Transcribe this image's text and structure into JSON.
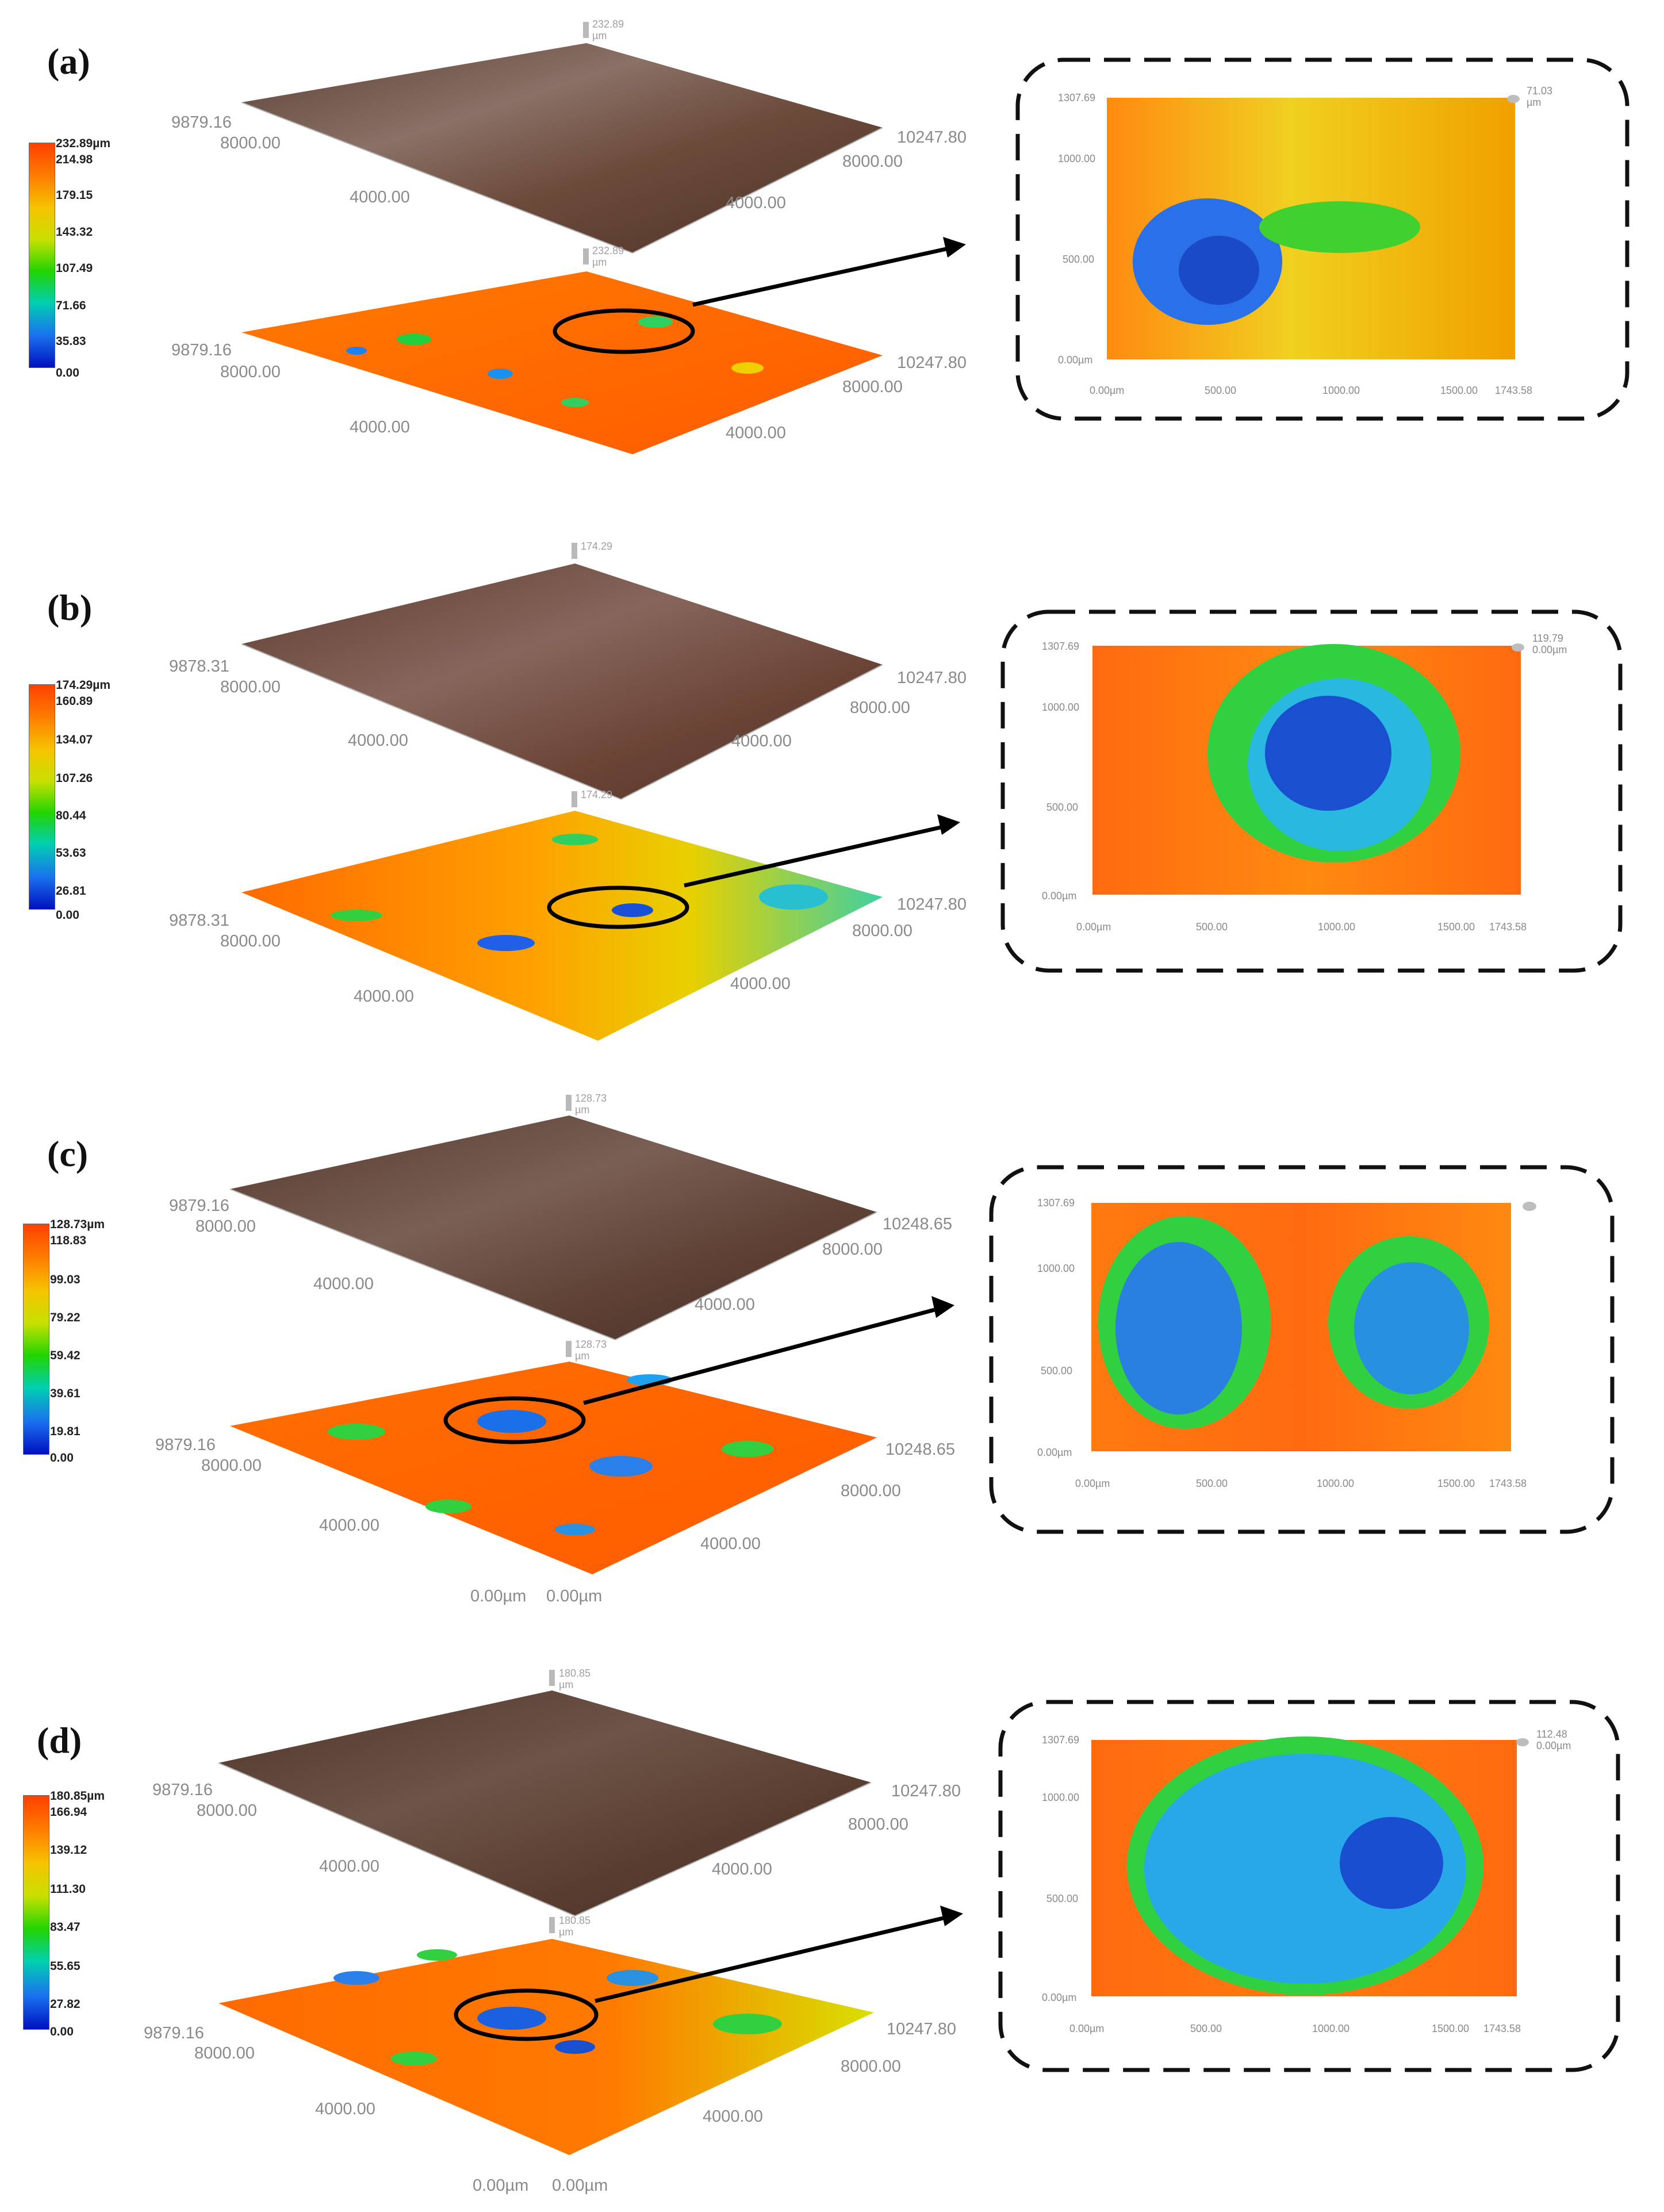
{
  "panels": [
    {
      "label": "(a)",
      "colorbar": [
        "232.89µm",
        "214.98",
        "179.15",
        "143.32",
        "107.49",
        "71.66",
        "35.83",
        "0.00"
      ],
      "top_surface": {
        "peak": "232.89",
        "unit": "µm",
        "y_max": "9879.16",
        "y_mid": "8000.00",
        "y_low": "4000.00",
        "x_max": "10247.80",
        "x_mid": "8000.00",
        "x_low": "4000.00"
      },
      "bottom_surface": {
        "peak": "232.89",
        "unit": "µm",
        "y_max": "9879.16",
        "y_mid": "8000.00",
        "y_low": "4000.00",
        "x_max": "10247.80",
        "x_mid": "8000.00",
        "x_low": "4000.00"
      },
      "origin": [],
      "inset": {
        "y_ticks": [
          "1307.69",
          "1000.00",
          "500.00",
          "0.00µm"
        ],
        "x_ticks": [
          "0.00µm",
          "500.00",
          "1000.00",
          "1500.00",
          "1743.58"
        ],
        "corner": "71.03",
        "corner_unit": "µm"
      }
    },
    {
      "label": "(b)",
      "colorbar": [
        "174.29µm",
        "160.89",
        "134.07",
        "107.26",
        "80.44",
        "53.63",
        "26.81",
        "0.00"
      ],
      "top_surface": {
        "peak": "174.29",
        "unit": "",
        "y_max": "9878.31",
        "y_mid": "8000.00",
        "y_low": "4000.00",
        "x_max": "10247.80",
        "x_mid": "8000.00",
        "x_low": "4000.00"
      },
      "bottom_surface": {
        "peak": "174.29",
        "unit": "",
        "y_max": "9878.31",
        "y_mid": "8000.00",
        "y_low": "4000.00",
        "x_max": "10247.80",
        "x_mid": "8000.00",
        "x_low": "4000.00"
      },
      "origin": [],
      "inset": {
        "y_ticks": [
          "1307.69",
          "1000.00",
          "500.00",
          "0.00µm"
        ],
        "x_ticks": [
          "0.00µm",
          "500.00",
          "1000.00",
          "1500.00",
          "1743.58"
        ],
        "corner": "119.79",
        "corner_unit": "0.00µm"
      }
    },
    {
      "label": "(c)",
      "colorbar": [
        "128.73µm",
        "118.83",
        "99.03",
        "79.22",
        "59.42",
        "39.61",
        "19.81",
        "0.00"
      ],
      "top_surface": {
        "peak": "128.73",
        "unit": "µm",
        "y_max": "9879.16",
        "y_mid": "8000.00",
        "y_low": "4000.00",
        "x_max": "10248.65",
        "x_mid": "8000.00",
        "x_low": "4000.00"
      },
      "bottom_surface": {
        "peak": "128.73",
        "unit": "µm",
        "y_max": "9879.16",
        "y_mid": "8000.00",
        "y_low": "4000.00",
        "x_max": "10248.65",
        "x_mid": "8000.00",
        "x_low": "4000.00"
      },
      "origin": [
        "0.00µm",
        "0.00µm"
      ],
      "inset": {
        "y_ticks": [
          "1307.69",
          "1000.00",
          "500.00",
          "0.00µm"
        ],
        "x_ticks": [
          "0.00µm",
          "500.00",
          "1000.00",
          "1500.00",
          "1743.58"
        ],
        "corner": "",
        "corner_unit": ""
      }
    },
    {
      "label": "(d)",
      "colorbar": [
        "180.85µm",
        "166.94",
        "139.12",
        "111.30",
        "83.47",
        "55.65",
        "27.82",
        "0.00"
      ],
      "top_surface": {
        "peak": "180.85",
        "unit": "µm",
        "y_max": "9879.16",
        "y_mid": "8000.00",
        "y_low": "4000.00",
        "x_max": "10247.80",
        "x_mid": "8000.00",
        "x_low": "4000.00"
      },
      "bottom_surface": {
        "peak": "180.85",
        "unit": "µm",
        "y_max": "9879.16",
        "y_mid": "8000.00",
        "y_low": "4000.00",
        "x_max": "10247.80",
        "x_mid": "8000.00",
        "x_low": "4000.00"
      },
      "origin": [
        "0.00µm",
        "0.00µm"
      ],
      "inset": {
        "y_ticks": [
          "1307.69",
          "1000.00",
          "500.00",
          "0.00µm"
        ],
        "x_ticks": [
          "0.00µm",
          "500.00",
          "1000.00",
          "1500.00",
          "1743.58"
        ],
        "corner": "112.48",
        "corner_unit": "0.00µm"
      }
    }
  ],
  "colors": {
    "colormap": [
      "#ff4000",
      "#ff7a00",
      "#f5c400",
      "#c8e000",
      "#22d400",
      "#00d0b0",
      "#1a70f0",
      "#0010c0"
    ],
    "photo_surface": "#6b4a3a",
    "axis_text": "#8a8a8a",
    "frame": "#111111"
  }
}
